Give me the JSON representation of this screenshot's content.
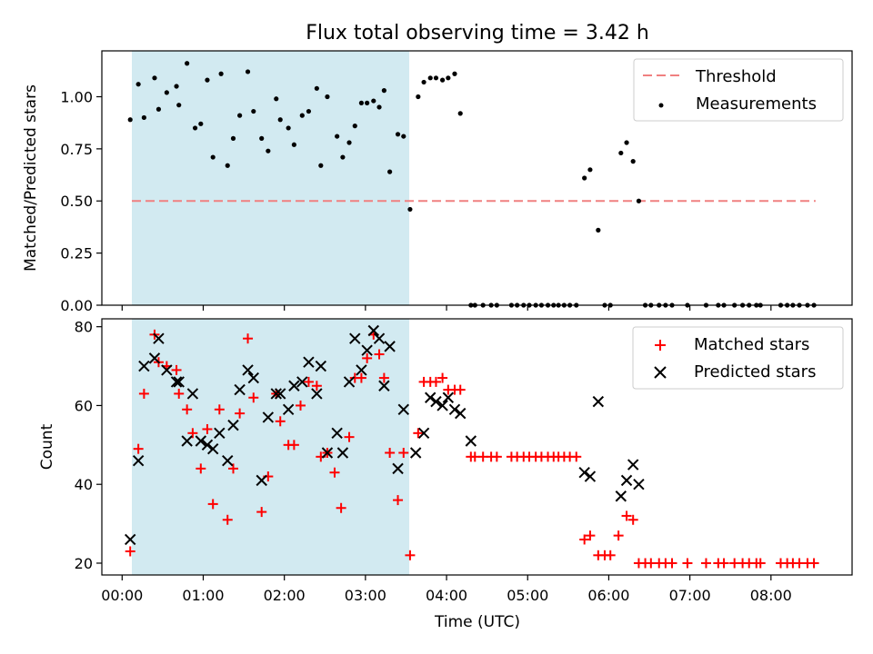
{
  "chart_data": [
    {
      "type": "scatter",
      "title": "Flux total observing time = 3.42 h",
      "xlabel": "",
      "ylabel": "Matched/Predicted stars",
      "ylim": [
        0,
        1.22
      ],
      "yticks": [
        "0.00",
        "0.25",
        "0.50",
        "0.75",
        "1.00"
      ],
      "ytick_values": [
        0,
        0.25,
        0.5,
        0.75,
        1.0
      ],
      "shaded_span_hours": [
        0.12,
        3.54
      ],
      "shade_color": "#add8e6",
      "threshold": {
        "name": "Threshold",
        "value": 0.5,
        "x_range_hours": [
          0.12,
          8.55
        ],
        "color": "#f08080"
      },
      "legend": [
        "Threshold",
        "Measurements"
      ],
      "legend_position": "top-right",
      "series": [
        {
          "name": "Measurements",
          "color": "#000000",
          "marker": "dot",
          "x": [
            0.1,
            0.2,
            0.27,
            0.4,
            0.45,
            0.55,
            0.67,
            0.7,
            0.8,
            0.9,
            0.97,
            1.05,
            1.12,
            1.22,
            1.3,
            1.37,
            1.45,
            1.55,
            1.62,
            1.72,
            1.8,
            1.9,
            1.95,
            2.05,
            2.12,
            2.22,
            2.3,
            2.4,
            2.45,
            2.53,
            2.65,
            2.72,
            2.8,
            2.87,
            2.95,
            3.02,
            3.1,
            3.17,
            3.23,
            3.3,
            3.4,
            3.47,
            3.55,
            3.65,
            3.72,
            3.8,
            3.87,
            3.95,
            4.02,
            4.1,
            4.17,
            4.3,
            4.35,
            4.45,
            4.55,
            4.62,
            4.8,
            4.87,
            4.95,
            5.02,
            5.1,
            5.17,
            5.25,
            5.32,
            5.38,
            5.45,
            5.52,
            5.6,
            5.7,
            5.77,
            5.87,
            5.95,
            6.02,
            6.15,
            6.22,
            6.3,
            6.37,
            6.45,
            6.52,
            6.62,
            6.7,
            6.78,
            6.97,
            7.2,
            7.35,
            7.42,
            7.55,
            7.65,
            7.73,
            7.82,
            7.87,
            8.12,
            8.2,
            8.27,
            8.35,
            8.45,
            8.53
          ],
          "y": [
            0.89,
            1.06,
            0.9,
            1.09,
            0.94,
            1.02,
            1.05,
            0.96,
            1.16,
            0.85,
            0.87,
            1.08,
            0.71,
            1.11,
            0.67,
            0.8,
            0.91,
            1.12,
            0.93,
            0.8,
            0.74,
            0.99,
            0.89,
            0.85,
            0.77,
            0.91,
            0.93,
            1.04,
            0.67,
            1.0,
            0.81,
            0.71,
            0.78,
            0.86,
            0.97,
            0.97,
            0.98,
            0.95,
            1.03,
            0.64,
            0.82,
            0.81,
            0.46,
            1.0,
            1.07,
            1.09,
            1.09,
            1.08,
            1.09,
            1.11,
            0.92,
            0,
            0,
            0,
            0,
            0,
            0,
            0,
            0,
            0,
            0,
            0,
            0,
            0,
            0,
            0,
            0,
            0,
            0.61,
            0.65,
            0.36,
            0,
            0,
            0.73,
            0.78,
            0.69,
            0.5,
            0,
            0,
            0,
            0,
            0,
            0,
            0,
            0,
            0,
            0,
            0,
            0,
            0,
            0,
            0,
            0,
            0,
            0,
            0,
            0
          ]
        }
      ]
    },
    {
      "type": "scatter",
      "title": "",
      "xlabel": "Time (UTC)",
      "ylabel": "Count",
      "ylim": [
        17,
        82
      ],
      "yticks": [
        "20",
        "40",
        "60",
        "80"
      ],
      "ytick_values": [
        20,
        40,
        60,
        80
      ],
      "xlim_hours": [
        -0.25,
        9.0
      ],
      "xtick_hours": [
        0,
        1,
        2,
        3,
        4,
        5,
        6,
        7,
        8
      ],
      "xticks": [
        "00:00",
        "01:00",
        "02:00",
        "03:00",
        "04:00",
        "05:00",
        "06:00",
        "07:00",
        "08:00"
      ],
      "shaded_span_hours": [
        0.12,
        3.54
      ],
      "shade_color": "#add8e6",
      "legend": [
        "Matched stars",
        "Predicted stars"
      ],
      "legend_position": "top-right",
      "series": [
        {
          "name": "Matched stars",
          "color": "#ff0000",
          "marker": "plus",
          "x": [
            0.1,
            0.2,
            0.27,
            0.4,
            0.45,
            0.55,
            0.67,
            0.7,
            0.8,
            0.87,
            0.97,
            1.05,
            1.12,
            1.2,
            1.3,
            1.37,
            1.45,
            1.55,
            1.62,
            1.72,
            1.8,
            1.9,
            1.95,
            2.05,
            2.12,
            2.2,
            2.3,
            2.4,
            2.45,
            2.53,
            2.62,
            2.7,
            2.8,
            2.87,
            2.95,
            3.02,
            3.1,
            3.17,
            3.23,
            3.3,
            3.4,
            3.47,
            3.55,
            3.65,
            3.72,
            3.8,
            3.87,
            3.95,
            4.02,
            4.1,
            4.17,
            4.3,
            4.35,
            4.45,
            4.55,
            4.62,
            4.8,
            4.87,
            4.95,
            5.02,
            5.1,
            5.17,
            5.25,
            5.32,
            5.38,
            5.45,
            5.52,
            5.6,
            5.7,
            5.77,
            5.87,
            5.95,
            6.02,
            6.12,
            6.22,
            6.3,
            6.37,
            6.45,
            6.52,
            6.62,
            6.7,
            6.78,
            6.97,
            7.2,
            7.35,
            7.42,
            7.55,
            7.65,
            7.73,
            7.82,
            7.87,
            8.12,
            8.2,
            8.27,
            8.35,
            8.45,
            8.53
          ],
          "y": [
            23,
            49,
            63,
            78,
            71,
            70,
            69,
            63,
            59,
            53,
            44,
            54,
            35,
            59,
            31,
            44,
            58,
            77,
            62,
            33,
            42,
            63,
            56,
            50,
            50,
            60,
            66,
            65,
            47,
            48,
            43,
            34,
            52,
            67,
            67,
            72,
            78,
            73,
            67,
            48,
            36,
            48,
            22,
            53,
            66,
            66,
            66,
            67,
            64,
            64,
            64,
            47,
            47,
            47,
            47,
            47,
            47,
            47,
            47,
            47,
            47,
            47,
            47,
            47,
            47,
            47,
            47,
            47,
            26,
            27,
            22,
            22,
            22,
            27,
            32,
            31,
            20,
            20,
            20,
            20,
            20,
            20,
            20,
            20,
            20,
            20,
            20,
            20,
            20,
            20,
            20,
            20,
            20,
            20,
            20,
            20,
            20
          ]
        },
        {
          "name": "Predicted stars",
          "color": "#000000",
          "marker": "x",
          "x": [
            0.1,
            0.2,
            0.27,
            0.4,
            0.45,
            0.55,
            0.67,
            0.7,
            0.8,
            0.87,
            0.97,
            1.05,
            1.12,
            1.2,
            1.3,
            1.37,
            1.45,
            1.55,
            1.62,
            1.72,
            1.8,
            1.9,
            1.95,
            2.05,
            2.12,
            2.22,
            2.3,
            2.4,
            2.45,
            2.53,
            2.65,
            2.72,
            2.8,
            2.87,
            2.95,
            3.02,
            3.1,
            3.17,
            3.23,
            3.3,
            3.4,
            3.47,
            3.62,
            3.72,
            3.8,
            3.87,
            3.95,
            4.02,
            4.1,
            4.17,
            4.3,
            5.7,
            5.77,
            5.87,
            6.15,
            6.22,
            6.3,
            6.37
          ],
          "y": [
            26,
            46,
            70,
            72,
            77,
            69,
            66,
            66,
            51,
            63,
            51,
            50,
            49,
            53,
            46,
            55,
            64,
            69,
            67,
            41,
            57,
            63,
            63,
            59,
            65,
            66,
            71,
            63,
            70,
            48,
            53,
            48,
            66,
            77,
            69,
            74,
            79,
            77,
            65,
            75,
            44,
            59,
            48,
            53,
            62,
            61,
            60,
            62,
            59,
            58,
            51,
            43,
            42,
            61,
            37,
            41,
            45,
            40
          ]
        }
      ]
    }
  ]
}
